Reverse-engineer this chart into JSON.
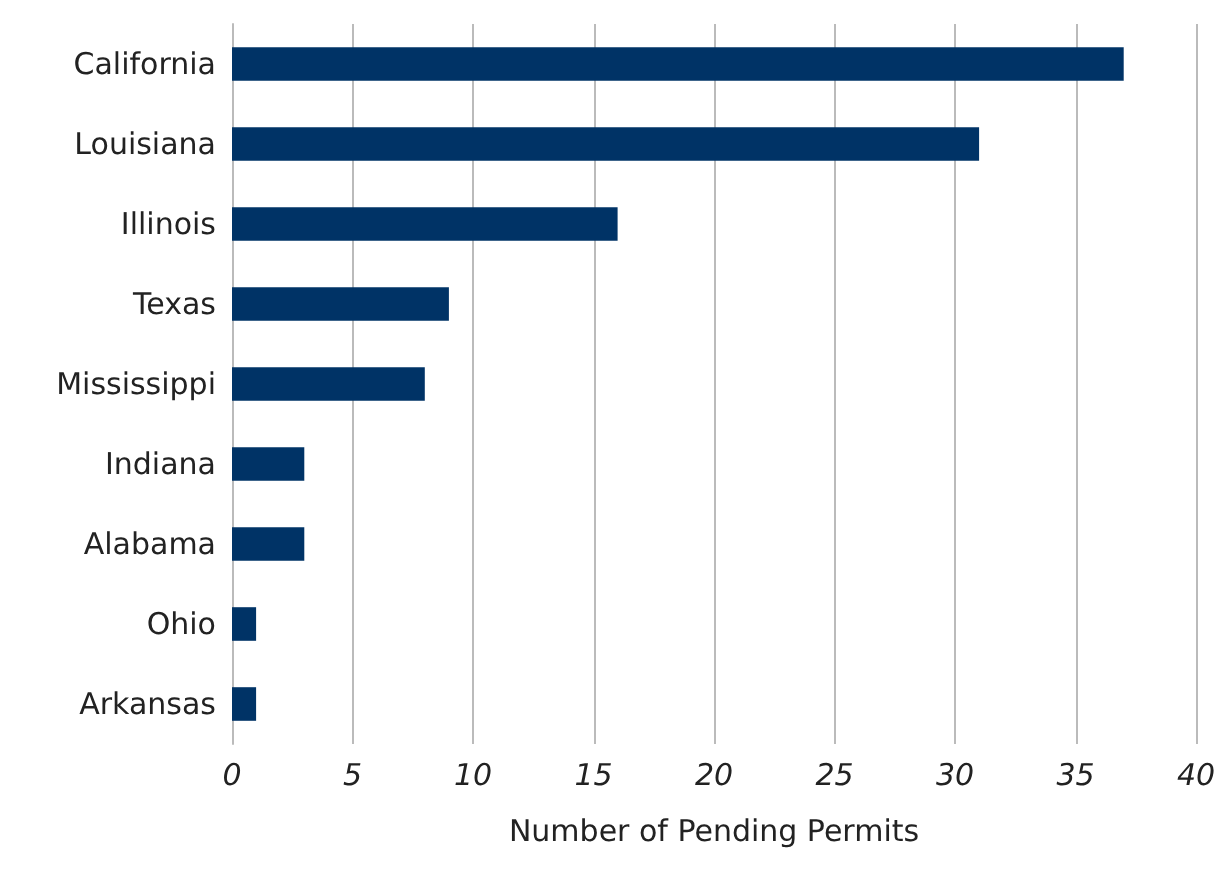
{
  "chart_data": {
    "type": "bar",
    "orientation": "horizontal",
    "xlabel": "Number of Pending Permits",
    "categories": [
      "California",
      "Louisiana",
      "Illinois",
      "Texas",
      "Mississippi",
      "Indiana",
      "Alabama",
      "Ohio",
      "Arkansas"
    ],
    "values": [
      37,
      31,
      16,
      9,
      8,
      3,
      3,
      1,
      1
    ],
    "color": "#003366",
    "xlim": [
      0,
      40
    ],
    "xticks": [
      0,
      5,
      10,
      15,
      20,
      25,
      30,
      35,
      40
    ],
    "grid": "x"
  }
}
